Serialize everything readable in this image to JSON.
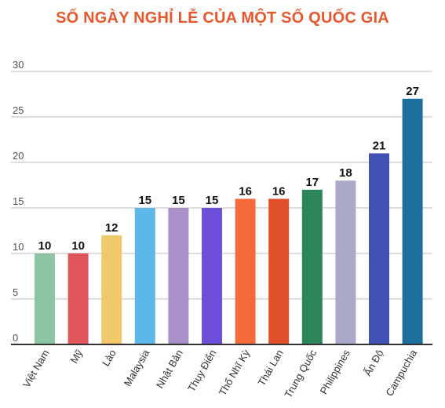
{
  "chart_data": {
    "type": "bar",
    "title": "SỐ NGÀY NGHỈ LỄ CỦA MỘT SỐ QUỐC GIA",
    "categories": [
      "Việt Nam",
      "Mỹ",
      "Lào",
      "Malaysia",
      "Nhật Bản",
      "Thụy Điển",
      "Thổ Nhĩ Kỳ",
      "Thái Lan",
      "Trung Quốc",
      "Philippines",
      "Ấn Độ",
      "Campuchia"
    ],
    "values": [
      10,
      10,
      12,
      15,
      15,
      15,
      16,
      16,
      17,
      18,
      21,
      27
    ],
    "colors": [
      "#8cc4a4",
      "#e05559",
      "#f0c96a",
      "#5db7e8",
      "#a990c9",
      "#6e4fd9",
      "#f56b3a",
      "#e04e2a",
      "#2d8659",
      "#a9a9c9",
      "#4150b5",
      "#1f6f9e"
    ],
    "ylim": [
      0,
      30
    ],
    "yticks": [
      0,
      5,
      10,
      15,
      20,
      25,
      30
    ],
    "grid": true,
    "title_color": "#e8572b"
  }
}
